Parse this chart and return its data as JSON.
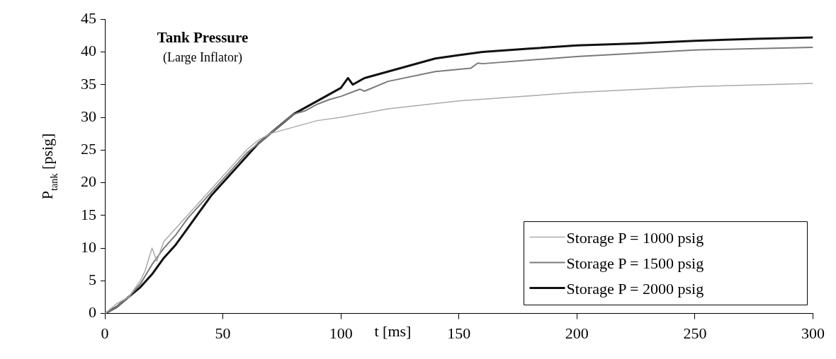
{
  "chart_data": {
    "type": "line",
    "title": "Tank Pressure",
    "subtitle": "(Large Inflator)",
    "xlabel": "t [ms]",
    "ylabel": "P$_{tank}$ [psig]",
    "xlim": [
      0,
      300
    ],
    "xticks": [
      0,
      50,
      100,
      150,
      200,
      250,
      300
    ],
    "ylim": [
      0,
      45
    ],
    "yticks": [
      0,
      5,
      10,
      15,
      20,
      25,
      30,
      35,
      40,
      45
    ],
    "grid": false,
    "legend": "bottom right",
    "marker": "none",
    "line_style": "solid",
    "series": [
      {
        "name": "Storage P = 1000 psig",
        "color": "#aaaaaa",
        "x": [
          0,
          5,
          10,
          15,
          17,
          20,
          22,
          25,
          30,
          35,
          40,
          45,
          50,
          55,
          60,
          65,
          70,
          80,
          90,
          100,
          120,
          150,
          200,
          250,
          300
        ],
        "values": [
          0,
          1.5,
          2.5,
          5,
          6.5,
          10,
          8,
          11,
          13,
          15,
          17,
          19,
          21,
          23,
          25,
          26.5,
          27.5,
          28.5,
          29.5,
          30,
          31.3,
          32.5,
          33.8,
          34.7,
          35.2
        ]
      },
      {
        "name": "Storage P = 1500 psig",
        "color": "#7a7a7a",
        "x": [
          0,
          5,
          10,
          15,
          20,
          25,
          30,
          35,
          40,
          45,
          50,
          55,
          60,
          65,
          70,
          75,
          80,
          85,
          90,
          95,
          100,
          108,
          110,
          120,
          140,
          155,
          158,
          160,
          200,
          250,
          300
        ],
        "values": [
          0,
          1,
          2.5,
          4.5,
          7.5,
          10,
          12,
          14.5,
          16.5,
          18.5,
          20.5,
          22.5,
          24.5,
          26,
          27.5,
          29,
          30.5,
          31,
          32,
          32.7,
          33.2,
          34.3,
          34,
          35.5,
          37,
          37.5,
          38.3,
          38.2,
          39.3,
          40.3,
          40.7
        ]
      },
      {
        "name": "Storage P = 2000 psig",
        "color": "#111111",
        "x": [
          0,
          5,
          10,
          15,
          20,
          25,
          30,
          35,
          40,
          45,
          50,
          55,
          60,
          65,
          70,
          75,
          80,
          85,
          90,
          95,
          100,
          103,
          105,
          110,
          120,
          130,
          140,
          150,
          160,
          180,
          200,
          225,
          250,
          275,
          300
        ],
        "values": [
          0,
          1,
          2.5,
          4,
          6,
          8.5,
          10.5,
          13,
          15.5,
          18,
          20,
          22,
          24,
          26,
          27.5,
          29,
          30.5,
          31.5,
          32.5,
          33.5,
          34.5,
          36,
          35,
          36,
          37,
          38,
          39,
          39.5,
          40,
          40.5,
          41,
          41.3,
          41.7,
          42,
          42.2
        ]
      }
    ]
  }
}
